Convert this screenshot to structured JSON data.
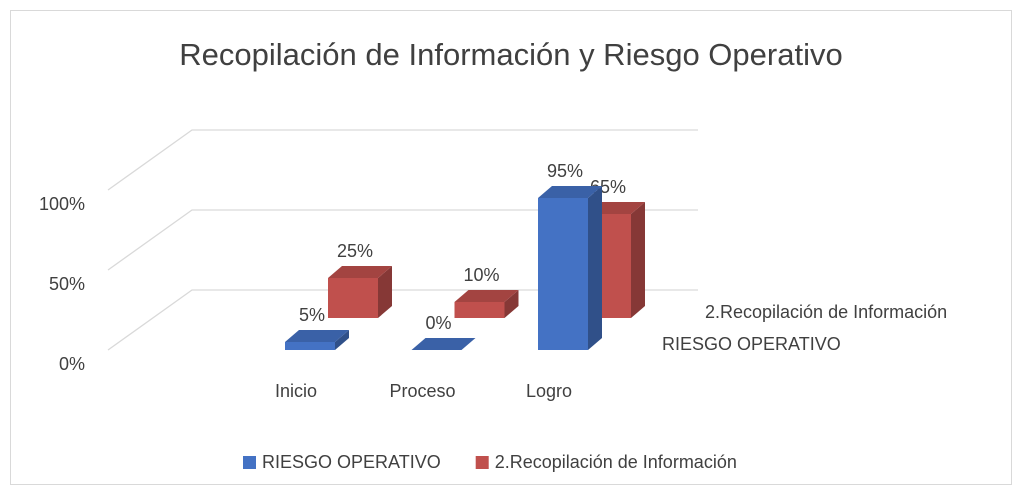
{
  "chart_data": {
    "type": "bar3d",
    "title": "Recopilación de Información y Riesgo Operativo",
    "categories": [
      "Inicio",
      "Proceso",
      "Logro"
    ],
    "series": [
      {
        "name": "RIESGO OPERATIVO",
        "color": "#4472c4",
        "values": [
          5,
          0,
          95
        ],
        "value_labels": [
          "5%",
          "0%",
          "95%"
        ]
      },
      {
        "name": "2.Recopilación de Información",
        "color": "#c0504d",
        "values": [
          25,
          10,
          65
        ],
        "value_labels": [
          "25%",
          "10%",
          "65%"
        ]
      }
    ],
    "ylim": [
      0,
      100
    ],
    "yticks": [
      {
        "value": 0,
        "label": "0%"
      },
      {
        "value": 50,
        "label": "50%"
      },
      {
        "value": 100,
        "label": "100%"
      }
    ],
    "grid": true,
    "legend": "bottom"
  }
}
